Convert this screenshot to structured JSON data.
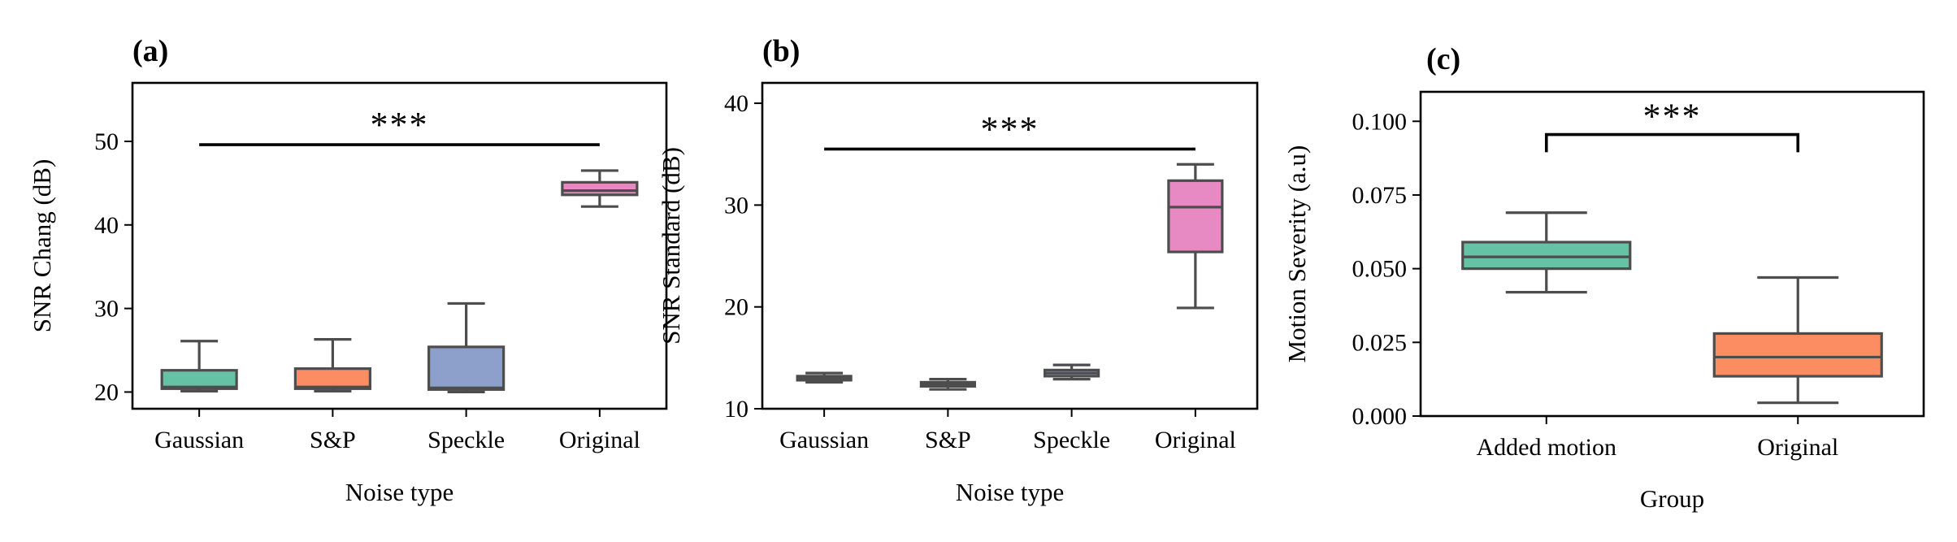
{
  "chart_data": [
    {
      "type": "box",
      "panel_label": "(a)",
      "xlabel": "Noise type",
      "ylabel": "SNR Chang (dB)",
      "ylim": [
        18,
        57
      ],
      "yticks": [
        20,
        30,
        40,
        50
      ],
      "categories": [
        "Gaussian",
        "S&P",
        "Speckle",
        "Original"
      ],
      "colors": [
        "#66c2a5",
        "#fc8d62",
        "#8da0cb",
        "#e78ac3"
      ],
      "boxes": [
        {
          "whislo": 20.1,
          "q1": 20.4,
          "med": 20.6,
          "q3": 22.6,
          "whishi": 26.1
        },
        {
          "whislo": 20.1,
          "q1": 20.4,
          "med": 20.6,
          "q3": 22.8,
          "whishi": 26.3
        },
        {
          "whislo": 20.0,
          "q1": 20.3,
          "med": 20.5,
          "q3": 25.4,
          "whishi": 30.6
        },
        {
          "whislo": 42.2,
          "q1": 43.6,
          "med": 44.1,
          "q3": 45.1,
          "whishi": 46.5
        }
      ],
      "significance": {
        "label": "***",
        "style": "line",
        "from_index": 0,
        "to_index": 3,
        "y": 49.6
      }
    },
    {
      "type": "box",
      "panel_label": "(b)",
      "xlabel": "Noise type",
      "ylabel": "SNR Standard (dB)",
      "ylim": [
        10,
        42
      ],
      "yticks": [
        10,
        20,
        30,
        40
      ],
      "categories": [
        "Gaussian",
        "S&P",
        "Speckle",
        "Original"
      ],
      "colors": [
        "#66c2a5",
        "#fc8d62",
        "#8da0cb",
        "#e78ac3"
      ],
      "boxes": [
        {
          "whislo": 12.6,
          "q1": 12.8,
          "med": 13.0,
          "q3": 13.2,
          "whishi": 13.5
        },
        {
          "whislo": 11.9,
          "q1": 12.2,
          "med": 12.4,
          "q3": 12.6,
          "whishi": 12.9
        },
        {
          "whislo": 12.9,
          "q1": 13.2,
          "med": 13.5,
          "q3": 13.8,
          "whishi": 14.3
        },
        {
          "whislo": 19.9,
          "q1": 25.4,
          "med": 29.8,
          "q3": 32.4,
          "whishi": 34.0
        }
      ],
      "significance": {
        "label": "***",
        "style": "line",
        "from_index": 0,
        "to_index": 3,
        "y": 35.5
      }
    },
    {
      "type": "box",
      "panel_label": "(c)",
      "xlabel": "Group",
      "ylabel": "Motion Severity (a.u)",
      "ylim": [
        0.0,
        0.11
      ],
      "yticks": [
        "0.000",
        "0.025",
        "0.050",
        "0.075",
        "0.100"
      ],
      "ytick_values": [
        0.0,
        0.025,
        0.05,
        0.075,
        0.1
      ],
      "categories": [
        "Added motion",
        "Original"
      ],
      "colors": [
        "#66c2a5",
        "#fc8d62"
      ],
      "boxes": [
        {
          "whislo": 0.042,
          "q1": 0.05,
          "med": 0.054,
          "q3": 0.059,
          "whishi": 0.069
        },
        {
          "whislo": 0.0045,
          "q1": 0.0135,
          "med": 0.02,
          "q3": 0.028,
          "whishi": 0.047
        }
      ],
      "significance": {
        "label": "***",
        "style": "bracket",
        "from_index": 0,
        "to_index": 1,
        "y": 0.0955,
        "drop": 0.006
      }
    }
  ]
}
